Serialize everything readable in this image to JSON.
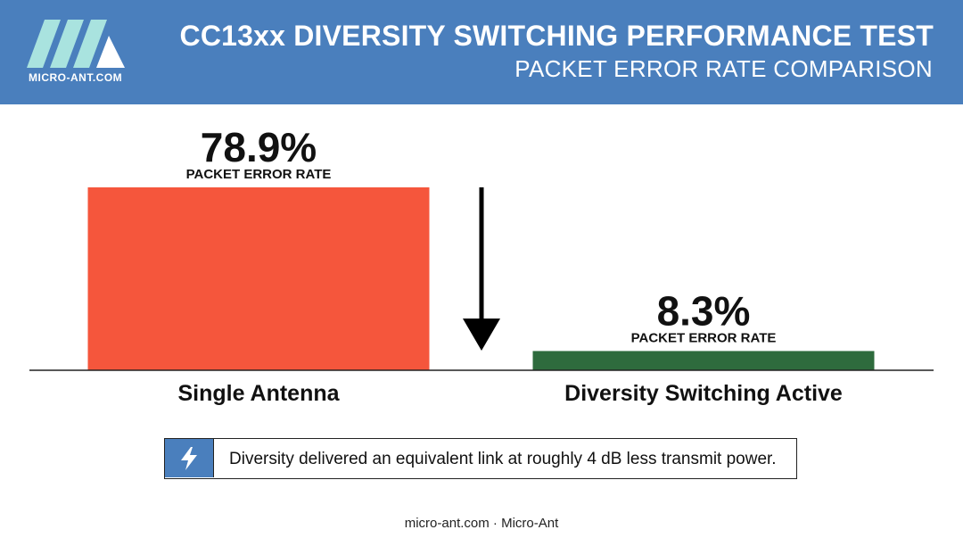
{
  "header": {
    "logo_text": "MICRO-ANT.COM",
    "title": "CC13xx DIVERSITY SWITCHING PERFORMANCE TEST",
    "subtitle": "PACKET ERROR RATE COMPARISON"
  },
  "chart_data": {
    "type": "bar",
    "categories": [
      "Single Antenna",
      "Diversity Switching Active"
    ],
    "values": [
      78.9,
      8.3
    ],
    "value_labels": [
      "78.9%",
      "8.3%"
    ],
    "value_caption": "PACKET ERROR RATE",
    "bar_colors": [
      "#f5563c",
      "#2e6b3d"
    ],
    "ylim": [
      0,
      78.9
    ],
    "grid": false,
    "legend": "none",
    "annotation": "down-arrow"
  },
  "callout": {
    "icon": "lightning-bolt-icon",
    "text": "Diversity delivered an equivalent link at roughly 4 dB less transmit power."
  },
  "footer": {
    "text": "micro-ant.com · Micro-Ant"
  },
  "colors": {
    "header": "#4a7fbd",
    "bar_single": "#f5563c",
    "bar_diversity": "#2e6b3d"
  }
}
